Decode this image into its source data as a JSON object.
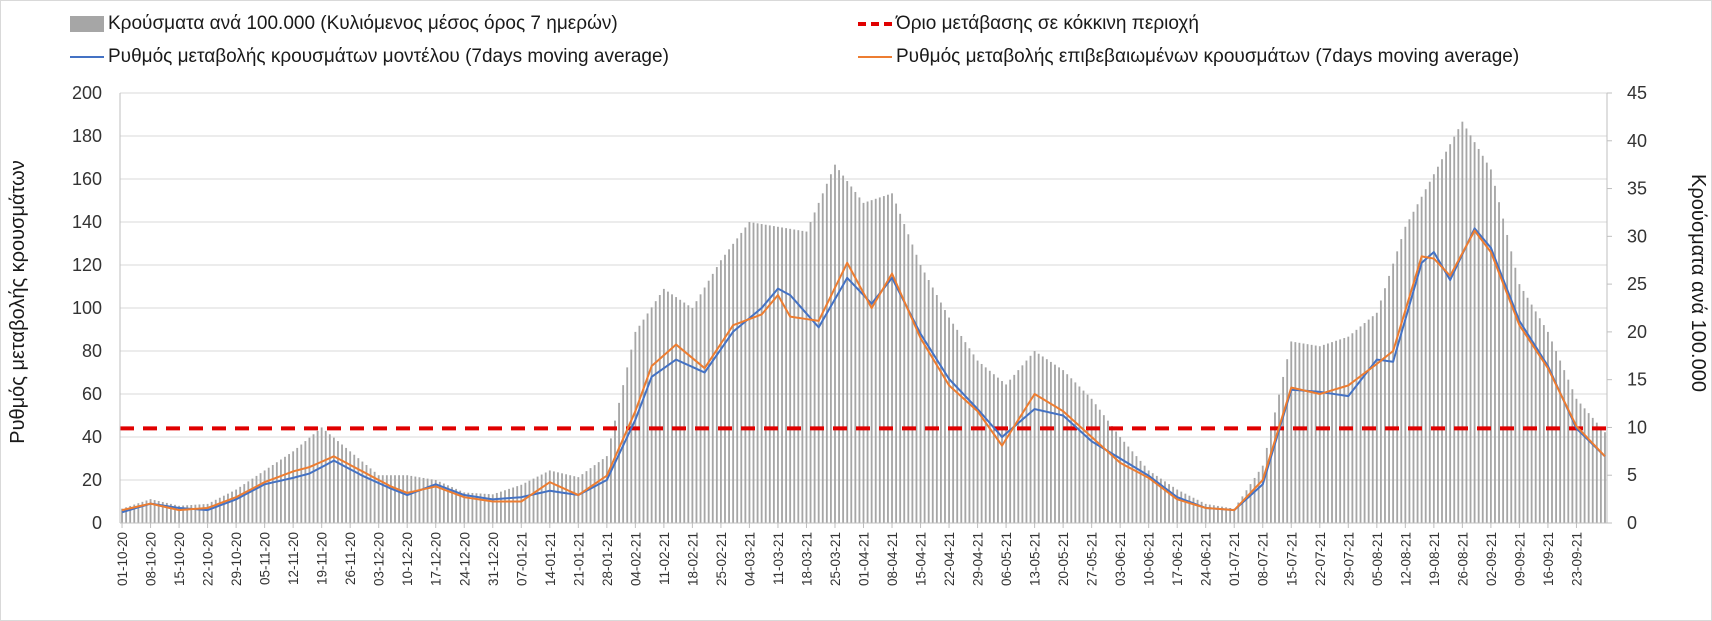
{
  "chart_data": {
    "type": "bar",
    "legend": {
      "bars": "Κρούσματα ανά 100.000 (Κυλιόμενος μέσος όρος 7 ημερών)",
      "threshold": "Όριο μετάβασης σε κόκκινη περιοχή",
      "model": "Ρυθμός μεταβολής κρουσμάτων μοντέλου (7days moving average)",
      "confirmed": "Ρυθμός μεταβολής επιβεβαιωμένων κρουσμάτων (7days moving average)"
    },
    "ylabel_left": "Ρυθμός μεταβολής κρουσμάτων",
    "ylabel_right": "Κρούσματα ανά 100.000",
    "ylim_left": [
      0,
      200
    ],
    "ylim_right": [
      0,
      45
    ],
    "yticks_left": [
      "0",
      "20",
      "40",
      "60",
      "80",
      "100",
      "120",
      "140",
      "160",
      "180",
      "200"
    ],
    "yticks_right": [
      "0",
      "5",
      "10",
      "15",
      "20",
      "25",
      "30",
      "35",
      "40",
      "45"
    ],
    "grid": "horizontal",
    "threshold_left_value": 44,
    "start_date": "2020-10-01",
    "end_date": "2021-09-30",
    "x_tick_labels": [
      "01-10-20",
      "08-10-20",
      "15-10-20",
      "22-10-20",
      "29-10-20",
      "05-11-20",
      "12-11-20",
      "19-11-20",
      "26-11-20",
      "03-12-20",
      "10-12-20",
      "17-12-20",
      "24-12-20",
      "31-12-20",
      "07-01-21",
      "14-01-21",
      "21-01-21",
      "28-01-21",
      "04-02-21",
      "11-02-21",
      "18-02-21",
      "25-02-21",
      "04-03-21",
      "11-03-21",
      "18-03-21",
      "25-03-21",
      "01-04-21",
      "08-04-21",
      "15-04-21",
      "22-04-21",
      "29-04-21",
      "06-05-21",
      "13-05-21",
      "20-05-21",
      "27-05-21",
      "03-06-21",
      "10-06-21",
      "17-06-21",
      "24-06-21",
      "01-07-21",
      "08-07-21",
      "15-07-21",
      "22-07-21",
      "29-07-21",
      "05-08-21",
      "12-08-21",
      "19-08-21",
      "26-08-21",
      "02-09-21",
      "09-09-21",
      "16-09-21",
      "23-09-21"
    ],
    "series": [
      {
        "name": "Κρούσματα ανά 100.000 (Κυλιόμενος μέσος όρος 7 ημερών)",
        "axis": "right",
        "type": "bar",
        "color": "#a6a6a6",
        "anchors": [
          [
            "2020-10-01",
            1.5
          ],
          [
            "2020-10-08",
            2.5
          ],
          [
            "2020-10-15",
            1.8
          ],
          [
            "2020-10-22",
            2.0
          ],
          [
            "2020-10-29",
            3.5
          ],
          [
            "2020-11-05",
            5.5
          ],
          [
            "2020-11-12",
            7.5
          ],
          [
            "2020-11-19",
            10.0
          ],
          [
            "2020-11-26",
            7.5
          ],
          [
            "2020-12-03",
            5.0
          ],
          [
            "2020-12-10",
            5.0
          ],
          [
            "2020-12-17",
            4.5
          ],
          [
            "2020-12-24",
            3.2
          ],
          [
            "2020-12-31",
            3.0
          ],
          [
            "2021-01-07",
            4.0
          ],
          [
            "2021-01-14",
            5.5
          ],
          [
            "2021-01-21",
            4.8
          ],
          [
            "2021-01-28",
            7.0
          ],
          [
            "2021-02-04",
            20.0
          ],
          [
            "2021-02-11",
            24.5
          ],
          [
            "2021-02-18",
            22.5
          ],
          [
            "2021-02-25",
            27.5
          ],
          [
            "2021-03-04",
            31.5
          ],
          [
            "2021-03-11",
            31.0
          ],
          [
            "2021-03-18",
            30.5
          ],
          [
            "2021-03-25",
            37.5
          ],
          [
            "2021-04-01",
            33.5
          ],
          [
            "2021-04-08",
            34.5
          ],
          [
            "2021-04-15",
            27.0
          ],
          [
            "2021-04-22",
            21.5
          ],
          [
            "2021-04-29",
            17.0
          ],
          [
            "2021-05-06",
            14.5
          ],
          [
            "2021-05-13",
            18.0
          ],
          [
            "2021-05-20",
            16.0
          ],
          [
            "2021-05-27",
            13.0
          ],
          [
            "2021-06-03",
            9.0
          ],
          [
            "2021-06-10",
            5.5
          ],
          [
            "2021-06-17",
            3.5
          ],
          [
            "2021-06-24",
            2.0
          ],
          [
            "2021-07-01",
            1.5
          ],
          [
            "2021-07-08",
            6.0
          ],
          [
            "2021-07-15",
            19.0
          ],
          [
            "2021-07-22",
            18.5
          ],
          [
            "2021-07-29",
            19.5
          ],
          [
            "2021-08-05",
            22.0
          ],
          [
            "2021-08-12",
            31.0
          ],
          [
            "2021-08-19",
            36.5
          ],
          [
            "2021-08-26",
            42.0
          ],
          [
            "2021-09-02",
            37.0
          ],
          [
            "2021-09-09",
            25.0
          ],
          [
            "2021-09-16",
            20.0
          ],
          [
            "2021-09-23",
            13.0
          ],
          [
            "2021-09-30",
            9.5
          ]
        ]
      },
      {
        "name": "Ρυθμός μεταβολής κρουσμάτων μοντέλου (7days moving average)",
        "axis": "left",
        "type": "line",
        "color": "#4472c4",
        "anchors": [
          [
            "2020-10-01",
            5
          ],
          [
            "2020-10-08",
            9
          ],
          [
            "2020-10-15",
            7
          ],
          [
            "2020-10-22",
            6
          ],
          [
            "2020-10-29",
            11
          ],
          [
            "2020-11-05",
            18
          ],
          [
            "2020-11-12",
            21
          ],
          [
            "2020-11-16",
            23
          ],
          [
            "2020-11-22",
            29
          ],
          [
            "2020-11-29",
            22
          ],
          [
            "2020-12-06",
            16
          ],
          [
            "2020-12-10",
            13
          ],
          [
            "2020-12-17",
            18
          ],
          [
            "2020-12-24",
            13
          ],
          [
            "2020-12-31",
            11
          ],
          [
            "2021-01-07",
            12
          ],
          [
            "2021-01-14",
            15
          ],
          [
            "2021-01-21",
            13
          ],
          [
            "2021-01-28",
            20
          ],
          [
            "2021-02-04",
            48
          ],
          [
            "2021-02-08",
            68
          ],
          [
            "2021-02-14",
            76
          ],
          [
            "2021-02-21",
            70
          ],
          [
            "2021-02-28",
            89
          ],
          [
            "2021-03-07",
            100
          ],
          [
            "2021-03-11",
            109
          ],
          [
            "2021-03-14",
            106
          ],
          [
            "2021-03-21",
            91
          ],
          [
            "2021-03-28",
            114
          ],
          [
            "2021-04-03",
            102
          ],
          [
            "2021-04-08",
            114
          ],
          [
            "2021-04-15",
            88
          ],
          [
            "2021-04-22",
            67
          ],
          [
            "2021-04-29",
            53
          ],
          [
            "2021-05-05",
            40
          ],
          [
            "2021-05-13",
            53
          ],
          [
            "2021-05-20",
            50
          ],
          [
            "2021-05-27",
            38
          ],
          [
            "2021-06-03",
            30
          ],
          [
            "2021-06-10",
            22
          ],
          [
            "2021-06-17",
            12
          ],
          [
            "2021-06-24",
            7
          ],
          [
            "2021-07-01",
            6
          ],
          [
            "2021-07-08",
            18
          ],
          [
            "2021-07-15",
            62
          ],
          [
            "2021-07-22",
            61
          ],
          [
            "2021-07-29",
            59
          ],
          [
            "2021-08-05",
            76
          ],
          [
            "2021-08-09",
            75
          ],
          [
            "2021-08-16",
            121
          ],
          [
            "2021-08-19",
            126
          ],
          [
            "2021-08-23",
            113
          ],
          [
            "2021-08-29",
            137
          ],
          [
            "2021-09-02",
            128
          ],
          [
            "2021-09-09",
            94
          ],
          [
            "2021-09-16",
            73
          ],
          [
            "2021-09-23",
            44
          ],
          [
            "2021-09-30",
            31
          ]
        ]
      },
      {
        "name": "Ρυθμός μεταβολής επιβεβαιωμένων κρουσμάτων (7days moving average)",
        "axis": "left",
        "type": "line",
        "color": "#ed7d31",
        "anchors": [
          [
            "2020-10-01",
            6
          ],
          [
            "2020-10-08",
            9
          ],
          [
            "2020-10-15",
            6
          ],
          [
            "2020-10-22",
            7
          ],
          [
            "2020-10-29",
            12
          ],
          [
            "2020-11-05",
            19
          ],
          [
            "2020-11-12",
            24
          ],
          [
            "2020-11-16",
            26
          ],
          [
            "2020-11-22",
            31
          ],
          [
            "2020-11-29",
            24
          ],
          [
            "2020-12-06",
            17
          ],
          [
            "2020-12-10",
            14
          ],
          [
            "2020-12-17",
            17
          ],
          [
            "2020-12-24",
            12
          ],
          [
            "2020-12-31",
            10
          ],
          [
            "2021-01-07",
            10
          ],
          [
            "2021-01-14",
            19
          ],
          [
            "2021-01-21",
            13
          ],
          [
            "2021-01-28",
            22
          ],
          [
            "2021-02-04",
            52
          ],
          [
            "2021-02-08",
            73
          ],
          [
            "2021-02-14",
            83
          ],
          [
            "2021-02-21",
            72
          ],
          [
            "2021-02-28",
            92
          ],
          [
            "2021-03-07",
            97
          ],
          [
            "2021-03-11",
            106
          ],
          [
            "2021-03-14",
            96
          ],
          [
            "2021-03-21",
            94
          ],
          [
            "2021-03-28",
            121
          ],
          [
            "2021-04-03",
            100
          ],
          [
            "2021-04-08",
            116
          ],
          [
            "2021-04-15",
            86
          ],
          [
            "2021-04-22",
            64
          ],
          [
            "2021-04-29",
            52
          ],
          [
            "2021-05-05",
            36
          ],
          [
            "2021-05-13",
            60
          ],
          [
            "2021-05-20",
            52
          ],
          [
            "2021-05-27",
            40
          ],
          [
            "2021-06-03",
            28
          ],
          [
            "2021-06-10",
            21
          ],
          [
            "2021-06-17",
            11
          ],
          [
            "2021-06-24",
            7
          ],
          [
            "2021-07-01",
            6
          ],
          [
            "2021-07-08",
            20
          ],
          [
            "2021-07-15",
            63
          ],
          [
            "2021-07-22",
            60
          ],
          [
            "2021-07-29",
            64
          ],
          [
            "2021-08-05",
            74
          ],
          [
            "2021-08-09",
            80
          ],
          [
            "2021-08-16",
            124
          ],
          [
            "2021-08-19",
            123
          ],
          [
            "2021-08-23",
            115
          ],
          [
            "2021-08-29",
            136
          ],
          [
            "2021-09-02",
            126
          ],
          [
            "2021-09-09",
            92
          ],
          [
            "2021-09-16",
            72
          ],
          [
            "2021-09-23",
            45
          ],
          [
            "2021-09-30",
            31
          ]
        ]
      }
    ],
    "colors": {
      "bars": "#a6a6a6",
      "model": "#4472c4",
      "confirmed": "#ed7d31",
      "threshold": "#e00000"
    }
  }
}
